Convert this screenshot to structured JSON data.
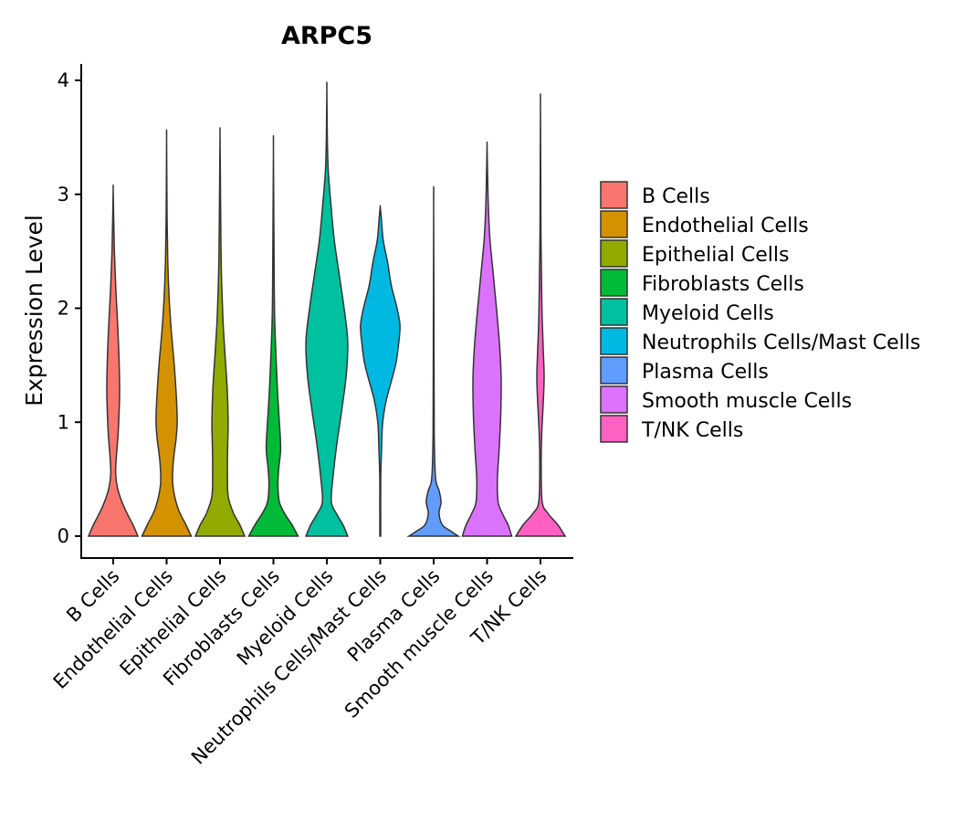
{
  "chart_data": {
    "type": "violin",
    "title": "ARPC5",
    "ylabel": "Expression Level",
    "xlabel": "",
    "ylim": [
      0,
      4
    ],
    "yticks": [
      0,
      1,
      2,
      3,
      4
    ],
    "categories": [
      "B Cells",
      "Endothelial Cells",
      "Epithelial Cells",
      "Fibroblasts Cells",
      "Myeloid Cells",
      "Neutrophils Cells/Mast Cells",
      "Plasma Cells",
      "Smooth muscle Cells",
      "T/NK Cells"
    ],
    "colors": [
      "#F8766D",
      "#D39200",
      "#93AA00",
      "#00BA38",
      "#00C19F",
      "#00B9E3",
      "#619CFF",
      "#DB72FB",
      "#FF61C3"
    ],
    "series": [
      {
        "name": "B Cells",
        "max": 3.05,
        "density": [
          [
            0,
            1.0
          ],
          [
            0.1,
            0.8
          ],
          [
            0.25,
            0.45
          ],
          [
            0.4,
            0.2
          ],
          [
            0.55,
            0.1
          ],
          [
            0.7,
            0.13
          ],
          [
            0.9,
            0.2
          ],
          [
            1.1,
            0.24
          ],
          [
            1.3,
            0.26
          ],
          [
            1.6,
            0.23
          ],
          [
            1.9,
            0.17
          ],
          [
            2.2,
            0.1
          ],
          [
            2.5,
            0.05
          ],
          [
            2.8,
            0.02
          ],
          [
            3.05,
            0
          ]
        ]
      },
      {
        "name": "Endothelial Cells",
        "max": 3.48,
        "density": [
          [
            0,
            1.0
          ],
          [
            0.1,
            0.78
          ],
          [
            0.25,
            0.45
          ],
          [
            0.45,
            0.25
          ],
          [
            0.65,
            0.27
          ],
          [
            0.85,
            0.38
          ],
          [
            1.0,
            0.43
          ],
          [
            1.2,
            0.4
          ],
          [
            1.5,
            0.31
          ],
          [
            1.8,
            0.19
          ],
          [
            2.1,
            0.1
          ],
          [
            2.4,
            0.05
          ],
          [
            2.8,
            0.02
          ],
          [
            3.48,
            0
          ]
        ]
      },
      {
        "name": "Epithelial Cells",
        "max": 3.52,
        "density": [
          [
            0,
            1.0
          ],
          [
            0.1,
            0.8
          ],
          [
            0.2,
            0.55
          ],
          [
            0.35,
            0.33
          ],
          [
            0.55,
            0.3
          ],
          [
            0.8,
            0.31
          ],
          [
            1.0,
            0.33
          ],
          [
            1.3,
            0.29
          ],
          [
            1.6,
            0.2
          ],
          [
            1.9,
            0.12
          ],
          [
            2.2,
            0.07
          ],
          [
            2.5,
            0.04
          ],
          [
            3.0,
            0.02
          ],
          [
            3.52,
            0
          ]
        ]
      },
      {
        "name": "Fibroblasts Cells",
        "max": 3.38,
        "density": [
          [
            0,
            1.0
          ],
          [
            0.1,
            0.75
          ],
          [
            0.2,
            0.45
          ],
          [
            0.3,
            0.24
          ],
          [
            0.45,
            0.18
          ],
          [
            0.6,
            0.22
          ],
          [
            0.75,
            0.29
          ],
          [
            0.9,
            0.27
          ],
          [
            1.1,
            0.21
          ],
          [
            1.3,
            0.16
          ],
          [
            1.6,
            0.1
          ],
          [
            1.9,
            0.05
          ],
          [
            2.3,
            0.03
          ],
          [
            3.38,
            0
          ]
        ]
      },
      {
        "name": "Myeloid Cells",
        "max": 3.93,
        "density": [
          [
            0,
            0.85
          ],
          [
            0.1,
            0.65
          ],
          [
            0.2,
            0.38
          ],
          [
            0.3,
            0.18
          ],
          [
            0.5,
            0.24
          ],
          [
            0.8,
            0.4
          ],
          [
            1.1,
            0.6
          ],
          [
            1.4,
            0.78
          ],
          [
            1.7,
            0.85
          ],
          [
            2.0,
            0.7
          ],
          [
            2.3,
            0.5
          ],
          [
            2.6,
            0.3
          ],
          [
            2.9,
            0.17
          ],
          [
            3.2,
            0.06
          ],
          [
            3.5,
            0.02
          ],
          [
            3.93,
            0
          ]
        ]
      },
      {
        "name": "Neutrophils Cells/Mast Cells",
        "max": 2.89,
        "density": [
          [
            0,
            0.02
          ],
          [
            0.5,
            0.02
          ],
          [
            0.8,
            0.06
          ],
          [
            1.0,
            0.1
          ],
          [
            1.2,
            0.25
          ],
          [
            1.5,
            0.62
          ],
          [
            1.7,
            0.75
          ],
          [
            1.85,
            0.8
          ],
          [
            2.0,
            0.68
          ],
          [
            2.2,
            0.45
          ],
          [
            2.4,
            0.3
          ],
          [
            2.6,
            0.12
          ],
          [
            2.8,
            0.04
          ],
          [
            2.89,
            0
          ]
        ]
      },
      {
        "name": "Plasma Cells",
        "max": 2.86,
        "density": [
          [
            0,
            1.0
          ],
          [
            0.05,
            0.65
          ],
          [
            0.1,
            0.35
          ],
          [
            0.2,
            0.22
          ],
          [
            0.3,
            0.3
          ],
          [
            0.4,
            0.22
          ],
          [
            0.5,
            0.08
          ],
          [
            0.8,
            0.03
          ],
          [
            1.2,
            0.02
          ],
          [
            2.86,
            0
          ]
        ]
      },
      {
        "name": "Smooth muscle Cells",
        "max": 3.43,
        "density": [
          [
            0,
            1.0
          ],
          [
            0.1,
            0.85
          ],
          [
            0.2,
            0.62
          ],
          [
            0.3,
            0.45
          ],
          [
            0.5,
            0.42
          ],
          [
            0.8,
            0.5
          ],
          [
            1.1,
            0.56
          ],
          [
            1.4,
            0.57
          ],
          [
            1.7,
            0.5
          ],
          [
            2.0,
            0.38
          ],
          [
            2.3,
            0.25
          ],
          [
            2.6,
            0.12
          ],
          [
            2.9,
            0.05
          ],
          [
            3.2,
            0.02
          ],
          [
            3.43,
            0
          ]
        ]
      },
      {
        "name": "T/NK Cells",
        "max": 3.75,
        "density": [
          [
            0,
            1.0
          ],
          [
            0.1,
            0.7
          ],
          [
            0.2,
            0.3
          ],
          [
            0.3,
            0.07
          ],
          [
            0.6,
            0.03
          ],
          [
            0.9,
            0.05
          ],
          [
            1.2,
            0.12
          ],
          [
            1.4,
            0.15
          ],
          [
            1.6,
            0.12
          ],
          [
            1.9,
            0.07
          ],
          [
            2.3,
            0.04
          ],
          [
            2.7,
            0.02
          ],
          [
            3.75,
            0
          ]
        ]
      }
    ],
    "legend": {
      "placement": "right",
      "entries": [
        "B Cells",
        "Endothelial Cells",
        "Epithelial Cells",
        "Fibroblasts Cells",
        "Myeloid Cells",
        "Neutrophils Cells/Mast Cells",
        "Plasma Cells",
        "Smooth muscle Cells",
        "T/NK Cells"
      ]
    }
  }
}
